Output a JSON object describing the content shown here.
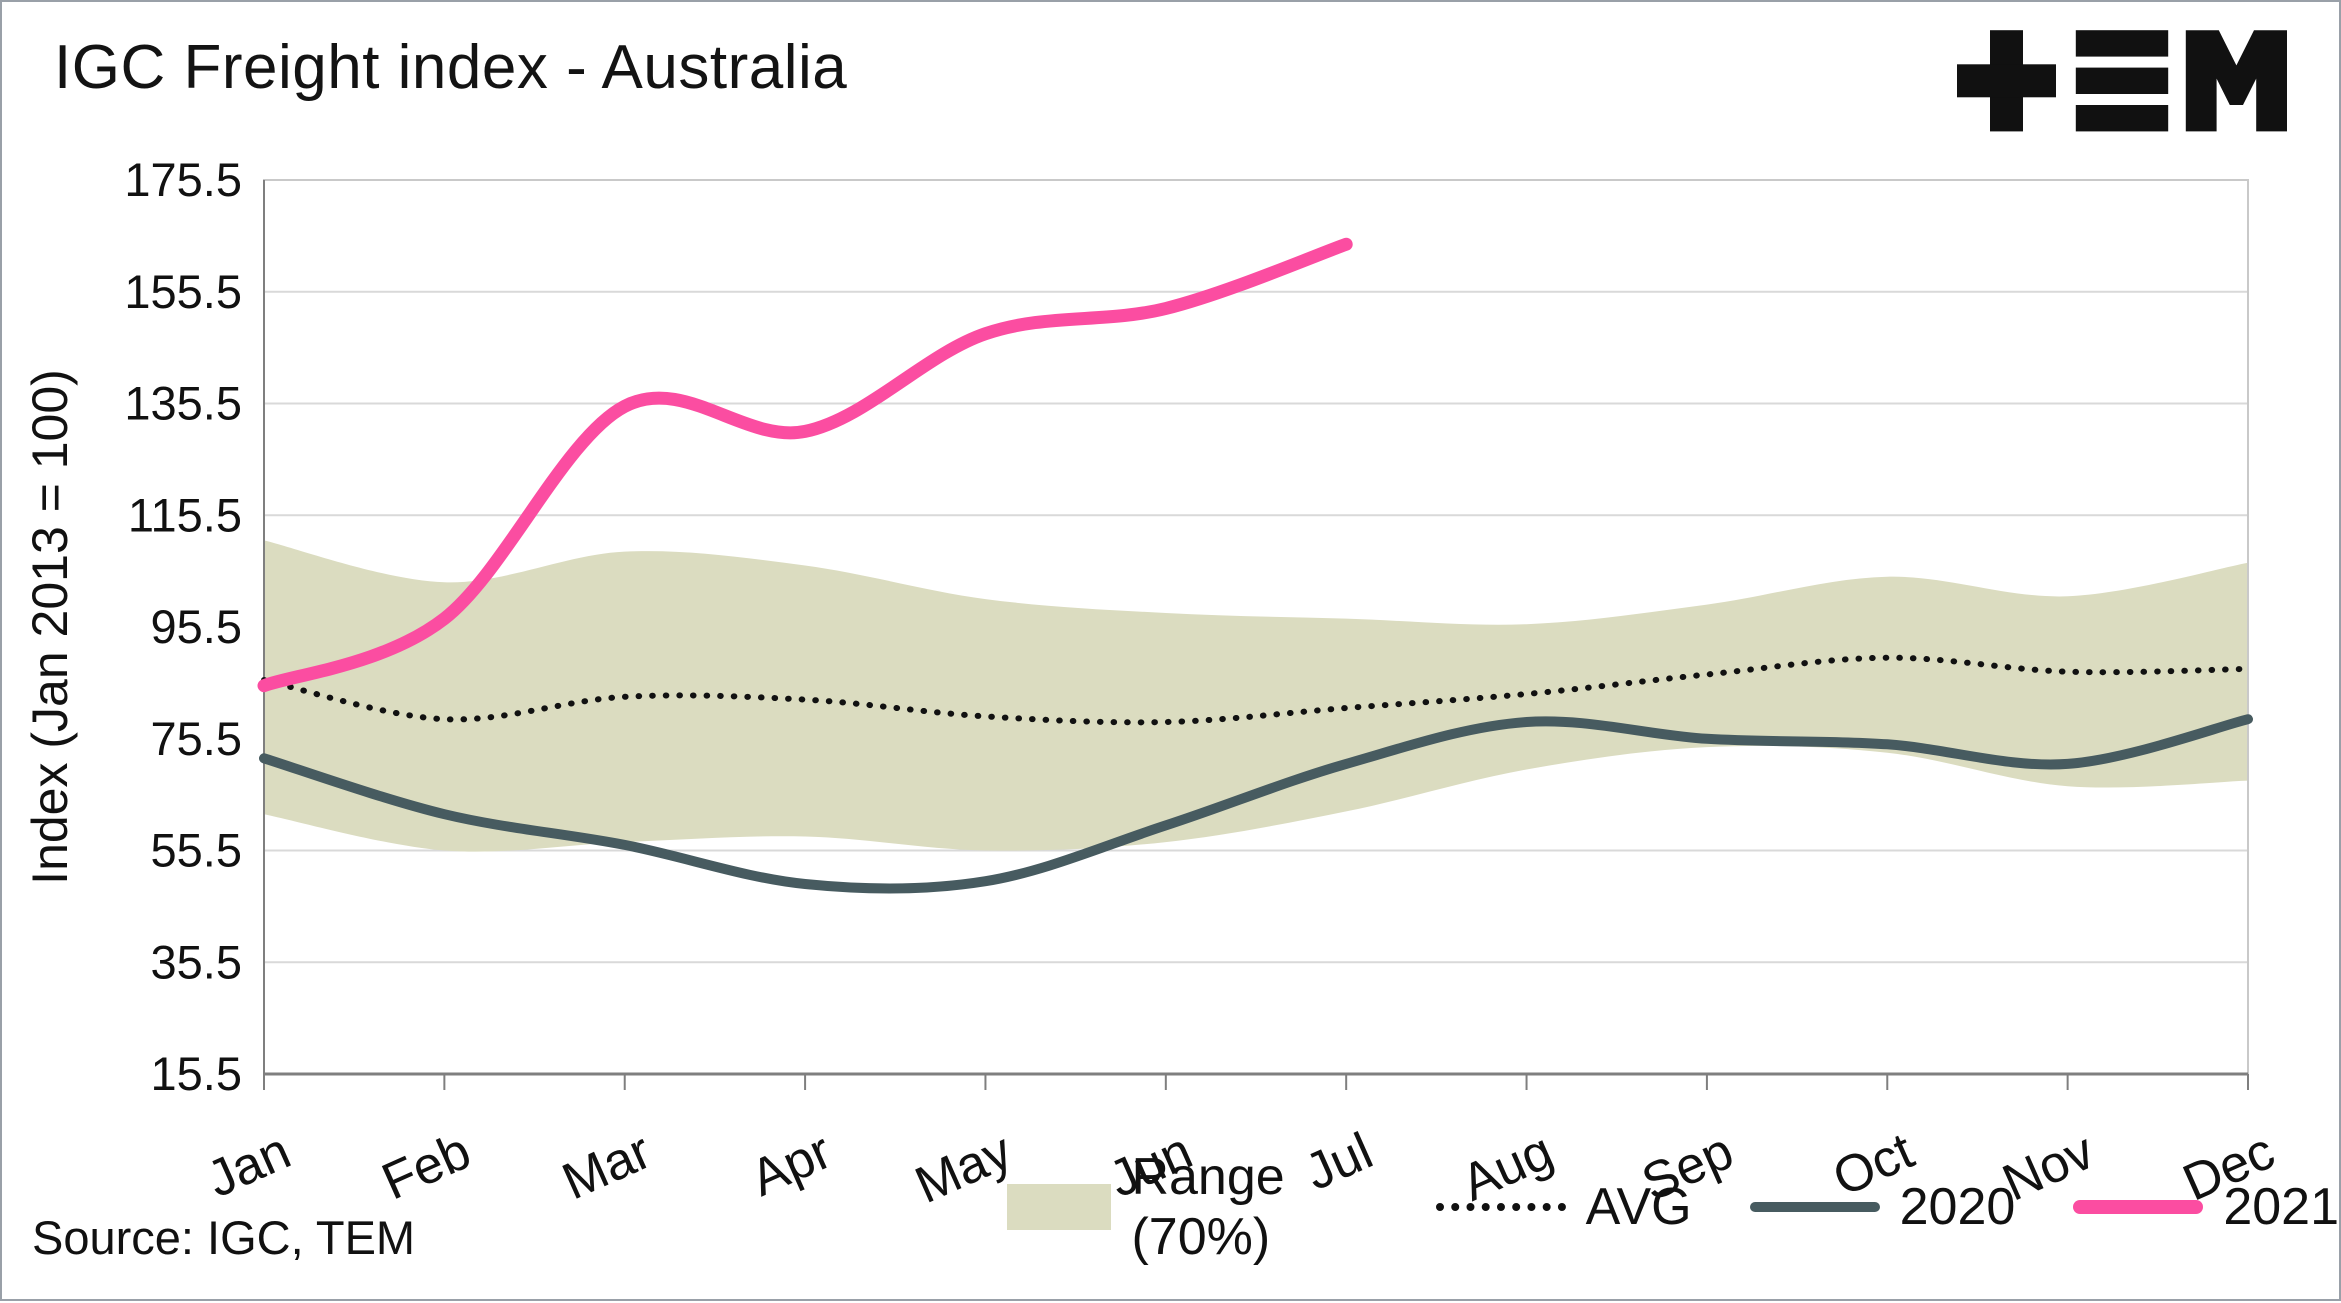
{
  "title": "IGC Freight index - Australia",
  "source": "Source: IGC, TEM",
  "ylabel": "Index (Jan 2013 = 100)",
  "logo": {
    "name": "TEM"
  },
  "legend": [
    {
      "label": "Range (70%)",
      "type": "band",
      "color": "#DBDCC0"
    },
    {
      "label": "AVG",
      "type": "dotted",
      "color": "#111111"
    },
    {
      "label": "2020",
      "type": "line",
      "color": "#475B60"
    },
    {
      "label": "2021",
      "type": "line",
      "color": "#FB4DA1"
    }
  ],
  "chart_data": {
    "type": "line",
    "title": "IGC Freight index - Australia",
    "xlabel": "",
    "ylabel": "Index (Jan 2013 = 100)",
    "categories": [
      "Jan",
      "Feb",
      "Mar",
      "Apr",
      "May",
      "Jun",
      "Jul",
      "Aug",
      "Sep",
      "Oct",
      "Nov",
      "Dec"
    ],
    "ylim": [
      15.5,
      175.5
    ],
    "yticks": [
      175.5,
      155.5,
      135.5,
      115.5,
      95.5,
      75.5,
      55.5,
      35.5,
      15.5
    ],
    "grid": true,
    "legend_position": "bottom",
    "band": {
      "name": "Range (70%)",
      "color": "#DBDCC0",
      "upper": [
        111,
        103.5,
        109,
        106.5,
        100.5,
        98,
        97,
        96,
        99.5,
        104.5,
        101,
        107
      ],
      "lower": [
        62,
        55.5,
        57,
        58,
        55.5,
        57,
        62.5,
        70,
        74,
        73,
        67,
        68
      ]
    },
    "series": [
      {
        "name": "AVG",
        "style": "dotted",
        "color": "#111111",
        "width": 6,
        "values": [
          86,
          79,
          83,
          82.5,
          79.5,
          78.5,
          81,
          83.5,
          87,
          90,
          87.5,
          88
        ]
      },
      {
        "name": "2020",
        "style": "solid",
        "color": "#475B60",
        "width": 10,
        "values": [
          72,
          62,
          56.5,
          49.5,
          50,
          60,
          71,
          78.5,
          75.5,
          74.5,
          71,
          79
        ]
      },
      {
        "name": "2021",
        "style": "solid",
        "color": "#FB4DA1",
        "width": 13,
        "values": [
          85,
          97,
          135,
          130.5,
          148,
          152.5,
          164,
          null,
          null,
          null,
          null,
          null
        ]
      }
    ]
  }
}
